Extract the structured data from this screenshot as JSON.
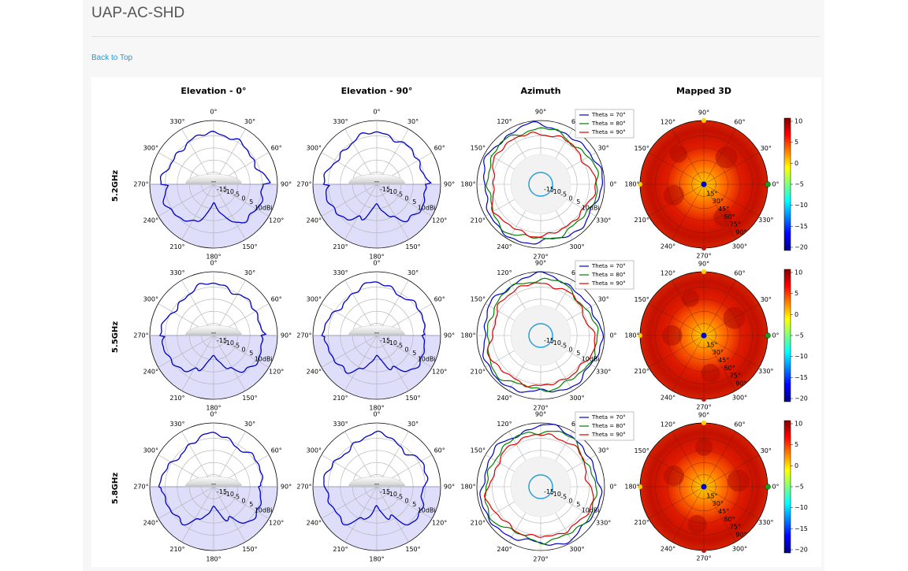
{
  "page": {
    "title": "UAP-AC-SHD",
    "back_link": "Back to Top"
  },
  "columns": [
    "Elevation - 0°",
    "Elevation - 90°",
    "Azimuth",
    "Mapped 3D"
  ],
  "rows": [
    "5.2GHz",
    "5.5GHz",
    "5.8GHz"
  ],
  "elevation_angle_labels": [
    "0°",
    "330°",
    "300°",
    "270°",
    "240°",
    "210°",
    "180°",
    "150°",
    "120°",
    "90°",
    "60°",
    "30°"
  ],
  "azimuth_angle_labels": [
    "0°",
    "30°",
    "60°",
    "90°",
    "120°",
    "150°",
    "180°",
    "210°",
    "240°",
    "270°",
    "300°",
    "330°"
  ],
  "radial_labels": [
    "-15",
    "-10",
    "-5",
    "0",
    "5",
    "10dBi"
  ],
  "theta_labels": [
    "15°",
    "30°",
    "45°",
    "60°",
    "75°",
    "90°"
  ],
  "legend": [
    "Theta = 70°",
    "Theta = 80°",
    "Theta = 90°"
  ],
  "colorbar_ticks": [
    "10",
    "5",
    "0",
    "−5",
    "−10",
    "−15",
    "−20"
  ],
  "colors": {
    "series": [
      "#0000c8",
      "#008000",
      "#e00000"
    ],
    "shade": "#dedefa",
    "link": "#1a9bd7"
  }
}
